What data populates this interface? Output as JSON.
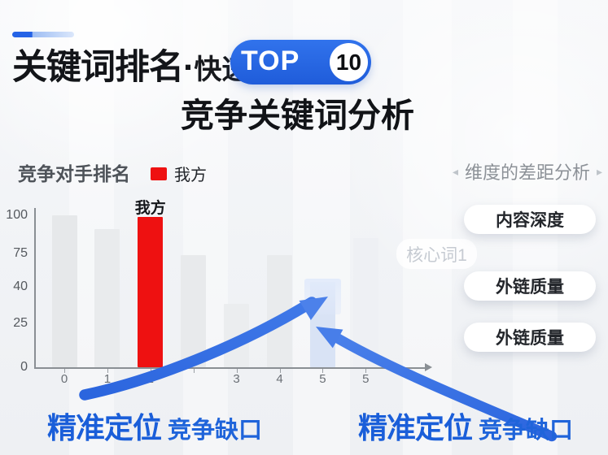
{
  "header": {
    "title_main": "关键词排名",
    "title_dot": "·",
    "title_fast": "快速",
    "badge_label": "TOP",
    "badge_value": "10",
    "subtitle": "竞争关键词分析"
  },
  "chart_header": {
    "section_title": "竞争对手排名",
    "legend_label": "我方",
    "legend_color": "#ee1111"
  },
  "chart_data": {
    "type": "bar",
    "title": "竞争对手排名",
    "categories": [
      "0",
      "1",
      "2",
      "",
      "3",
      "4",
      "5",
      "5"
    ],
    "values": [
      100,
      91,
      99,
      73,
      33,
      73,
      45,
      85
    ],
    "series_label": "我方",
    "bar_colors": [
      "#e6e8ea",
      "#e9ebed",
      "#ee1111",
      "#e8eaec",
      "#ebedef",
      "#e9ebed",
      "#d9e3f5",
      "#eef0f4"
    ],
    "labeled_bar_index": 2,
    "highlight_blue_index": 6,
    "y_ticks": [
      100,
      75,
      40,
      25,
      0
    ],
    "ylim": [
      0,
      100
    ],
    "legend": [
      "我方"
    ],
    "legend_position": "top",
    "grid": false,
    "xlabel": "",
    "ylabel": ""
  },
  "right_panel": {
    "title": "维度的差距分析",
    "left_arrow": "◂",
    "right_arrow": "▸",
    "tag": "核心词1",
    "buttons": [
      "内容深度",
      "外链质量",
      "外链质量"
    ]
  },
  "callouts": {
    "left": {
      "strong": "精准定位",
      "rest": "竞争缺口"
    },
    "right": {
      "strong": "精准定位",
      "rest": "竞争缺口"
    }
  },
  "colors": {
    "accent_blue": "#2667e2",
    "arrow_blue": "#2e6ce2",
    "bar_red": "#ee1111",
    "bar_highlight_blue": "#d9e3f5",
    "callout_blue": "#1a5ed9"
  }
}
